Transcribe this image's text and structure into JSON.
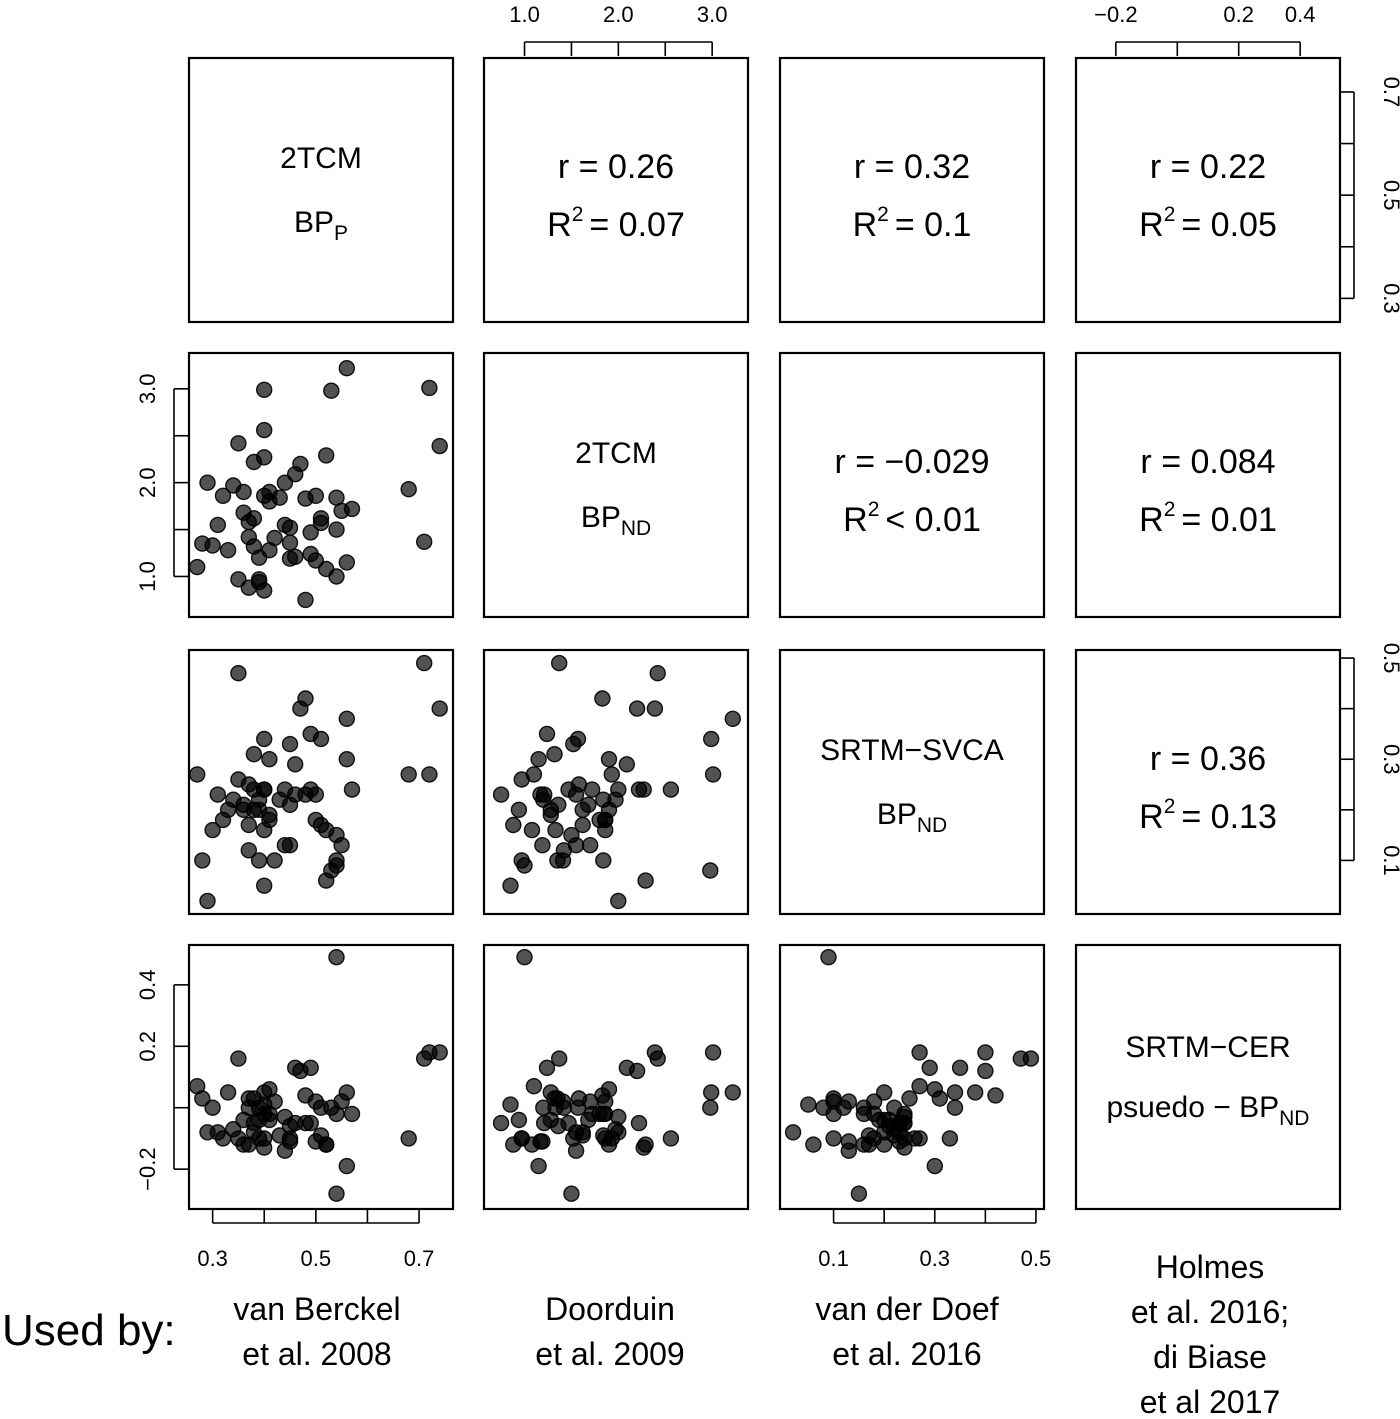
{
  "chart_data": {
    "type": "scatter",
    "kind": "scatterplot-matrix",
    "variables": [
      {
        "key": "v1",
        "title": "2TCM",
        "symbol": "BP",
        "subscript": "P",
        "range": [
          0.26,
          0.76
        ]
      },
      {
        "key": "v2",
        "title": "2TCM",
        "symbol": "BP",
        "subscript": "ND",
        "range": [
          0.6,
          3.35
        ]
      },
      {
        "key": "v3",
        "title": "SRTM−SVCA",
        "symbol": "BP",
        "subscript": "ND",
        "range": [
          0.0,
          0.51
        ]
      },
      {
        "key": "v4",
        "title": "SRTM−CER",
        "symbol": "psuedo − BP",
        "subscript": "ND",
        "range": [
          -0.32,
          0.52
        ]
      }
    ],
    "axis_ticks": {
      "top": [
        {
          "col": 1,
          "values": [
            1.0,
            1.5,
            2.0,
            2.5,
            3.0
          ],
          "labels": [
            "1.0",
            "",
            "2.0",
            "",
            "3.0"
          ]
        },
        {
          "col": 3,
          "values": [
            -0.2,
            0.0,
            0.2,
            0.4
          ],
          "labels": [
            "−0.2",
            "",
            "0.2",
            "0.4"
          ]
        }
      ],
      "bottom": [
        {
          "col": 0,
          "values": [
            0.3,
            0.4,
            0.5,
            0.6,
            0.7
          ],
          "labels": [
            "0.3",
            "",
            "0.5",
            "",
            "0.7"
          ]
        },
        {
          "col": 2,
          "values": [
            0.1,
            0.2,
            0.3,
            0.4,
            0.5
          ],
          "labels": [
            "0.1",
            "",
            "0.3",
            "",
            "0.5"
          ]
        }
      ],
      "left": [
        {
          "row": 1,
          "values": [
            1.0,
            1.5,
            2.0,
            2.5,
            3.0
          ],
          "labels": [
            "1.0",
            "",
            "2.0",
            "",
            "3.0"
          ]
        },
        {
          "row": 3,
          "values": [
            -0.2,
            0.0,
            0.2,
            0.4
          ],
          "labels": [
            "−0.2",
            "",
            "0.2",
            "0.4"
          ]
        }
      ],
      "right": [
        {
          "row": 0,
          "values": [
            0.3,
            0.4,
            0.5,
            0.6,
            0.7
          ],
          "labels": [
            "0.3",
            "",
            "0.5",
            "",
            "0.7"
          ]
        },
        {
          "row": 2,
          "values": [
            0.1,
            0.2,
            0.3,
            0.4,
            0.5
          ],
          "labels": [
            "0.1",
            "",
            "0.3",
            "",
            "0.5"
          ]
        }
      ]
    },
    "correlations": [
      {
        "row": 0,
        "col": 1,
        "r": "r = 0.26",
        "r2_op": "= 0.07"
      },
      {
        "row": 0,
        "col": 2,
        "r": "r = 0.32",
        "r2_op": "= 0.1"
      },
      {
        "row": 0,
        "col": 3,
        "r": "r = 0.22",
        "r2_op": "= 0.05"
      },
      {
        "row": 1,
        "col": 2,
        "r": "r = −0.029",
        "r2_op": "< 0.01"
      },
      {
        "row": 1,
        "col": 3,
        "r": "r = 0.084",
        "r2_op": "= 0.01"
      },
      {
        "row": 2,
        "col": 3,
        "r": "r = 0.36",
        "r2_op": "= 0.13"
      }
    ],
    "r2_symbol": "R",
    "r2_exponent": "2",
    "observations": [
      [
        0.27,
        1.1,
        0.27,
        0.07
      ],
      [
        0.28,
        1.35,
        0.1,
        0.03
      ],
      [
        0.29,
        2.0,
        0.02,
        -0.08
      ],
      [
        0.3,
        1.33,
        0.16,
        0.0
      ],
      [
        0.31,
        1.55,
        0.23,
        -0.08
      ],
      [
        0.32,
        1.86,
        0.18,
        -0.1
      ],
      [
        0.33,
        1.28,
        0.2,
        0.05
      ],
      [
        0.34,
        1.97,
        0.22,
        -0.07
      ],
      [
        0.35,
        2.42,
        0.47,
        0.16
      ],
      [
        0.35,
        0.97,
        0.26,
        -0.1
      ],
      [
        0.36,
        1.9,
        0.2,
        -0.12
      ],
      [
        0.36,
        1.68,
        0.21,
        -0.04
      ],
      [
        0.37,
        1.42,
        0.12,
        0.0
      ],
      [
        0.37,
        0.88,
        0.17,
        -0.12
      ],
      [
        0.37,
        1.58,
        0.25,
        0.03
      ],
      [
        0.38,
        2.22,
        0.24,
        -0.05
      ],
      [
        0.38,
        1.32,
        0.31,
        0.03
      ],
      [
        0.38,
        1.62,
        0.2,
        -0.08
      ],
      [
        0.39,
        0.97,
        0.1,
        -0.1
      ],
      [
        0.39,
        1.2,
        0.22,
        0.0
      ],
      [
        0.39,
        0.94,
        0.2,
        -0.04
      ],
      [
        0.4,
        2.99,
        0.34,
        0.05
      ],
      [
        0.4,
        2.27,
        0.24,
        -0.13
      ],
      [
        0.4,
        1.86,
        0.16,
        -0.02
      ],
      [
        0.4,
        0.85,
        0.05,
        0.01
      ],
      [
        0.4,
        2.56,
        0.24,
        -0.1
      ],
      [
        0.41,
        1.28,
        0.19,
        -0.04
      ],
      [
        0.41,
        1.8,
        0.18,
        -0.02
      ],
      [
        0.41,
        1.9,
        0.3,
        0.06
      ],
      [
        0.42,
        1.41,
        0.1,
        0.02
      ],
      [
        0.43,
        1.84,
        0.22,
        -0.09
      ],
      [
        0.44,
        1.55,
        0.13,
        -0.14
      ],
      [
        0.44,
        2.0,
        0.24,
        -0.03
      ],
      [
        0.45,
        1.52,
        0.33,
        -0.1
      ],
      [
        0.45,
        1.36,
        0.21,
        -0.06
      ],
      [
        0.45,
        1.19,
        0.13,
        -0.11
      ],
      [
        0.46,
        2.09,
        0.29,
        0.13
      ],
      [
        0.46,
        1.21,
        0.23,
        -0.05
      ],
      [
        0.47,
        2.2,
        0.4,
        0.12
      ],
      [
        0.48,
        0.75,
        0.23,
        -0.05
      ],
      [
        0.48,
        1.83,
        0.42,
        0.04
      ],
      [
        0.49,
        1.24,
        0.35,
        0.13
      ],
      [
        0.49,
        1.47,
        0.24,
        -0.05
      ],
      [
        0.5,
        1.86,
        0.18,
        0.02
      ],
      [
        0.5,
        1.17,
        0.23,
        -0.11
      ],
      [
        0.51,
        1.62,
        0.17,
        -0.09
      ],
      [
        0.51,
        1.57,
        0.34,
        0.0
      ],
      [
        0.52,
        2.29,
        0.06,
        -0.12
      ],
      [
        0.52,
        1.08,
        0.16,
        -0.12
      ],
      [
        0.53,
        2.98,
        0.08,
        0.0
      ],
      [
        0.54,
        1.84,
        0.1,
        -0.02
      ],
      [
        0.54,
        1.5,
        0.15,
        -0.28
      ],
      [
        0.54,
        1.0,
        0.09,
        0.49
      ],
      [
        0.55,
        1.7,
        0.13,
        0.02
      ],
      [
        0.56,
        1.15,
        0.3,
        -0.19
      ],
      [
        0.56,
        3.22,
        0.38,
        0.05
      ],
      [
        0.57,
        1.72,
        0.24,
        -0.02
      ],
      [
        0.68,
        1.93,
        0.27,
        -0.1
      ],
      [
        0.71,
        1.37,
        0.49,
        0.16
      ],
      [
        0.72,
        3.01,
        0.27,
        0.18
      ],
      [
        0.74,
        2.39,
        0.4,
        0.18
      ]
    ]
  },
  "used_by": {
    "label": "Used by:",
    "columns": [
      [
        "van Berckel",
        "et al. 2008"
      ],
      [
        "Doorduin",
        "et al. 2009"
      ],
      [
        "van der Doef",
        "et al. 2016"
      ],
      [
        "Holmes",
        "et al. 2016;",
        "di Biase",
        "et al 2017"
      ]
    ]
  }
}
